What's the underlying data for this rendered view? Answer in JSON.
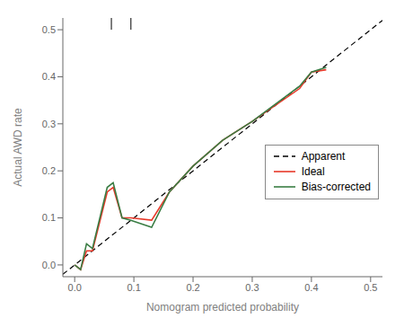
{
  "chart_data": {
    "type": "line",
    "xlabel": "Nomogram predicted probability",
    "ylabel": "Actual AWD rate",
    "xlim": [
      -0.02,
      0.52
    ],
    "ylim": [
      -0.025,
      0.525
    ],
    "xticks": [
      {
        "value": 0.0,
        "label": "0.0"
      },
      0.1,
      0.2,
      0.3,
      0.4,
      0.5
    ],
    "yticks": [
      {
        "value": 0.0,
        "label": "0.0"
      },
      0.1,
      0.2,
      0.3,
      0.4,
      0.5
    ],
    "grid": false,
    "legend": "lower right",
    "series": [
      {
        "name": "Apparent",
        "color": "#000000",
        "line_style": "dashed",
        "x": [
          -0.02,
          0.52
        ],
        "values": [
          -0.02,
          0.52
        ]
      },
      {
        "name": "Ideal",
        "color": "#e8392a",
        "line_style": "solid",
        "x": [
          0.0,
          0.01,
          0.02,
          0.03,
          0.055,
          0.065,
          0.08,
          0.095,
          0.13,
          0.16,
          0.2,
          0.25,
          0.3,
          0.38,
          0.4,
          0.425
        ],
        "values": [
          0.0,
          -0.01,
          0.03,
          0.03,
          0.155,
          0.165,
          0.1,
          0.1,
          0.095,
          0.155,
          0.21,
          0.265,
          0.305,
          0.375,
          0.41,
          0.415
        ]
      },
      {
        "name": "Bias-corrected",
        "color": "#3a7d44",
        "line_style": "solid",
        "x": [
          0.0,
          0.01,
          0.02,
          0.03,
          0.055,
          0.065,
          0.08,
          0.095,
          0.13,
          0.16,
          0.2,
          0.25,
          0.3,
          0.38,
          0.4,
          0.425
        ],
        "values": [
          0.0,
          -0.01,
          0.045,
          0.035,
          0.165,
          0.175,
          0.1,
          0.095,
          0.08,
          0.155,
          0.21,
          0.265,
          0.305,
          0.38,
          0.41,
          0.42
        ]
      }
    ],
    "spikes": {
      "x": [
        0.062,
        0.095
      ],
      "y": [
        0.5,
        0.525
      ]
    }
  }
}
